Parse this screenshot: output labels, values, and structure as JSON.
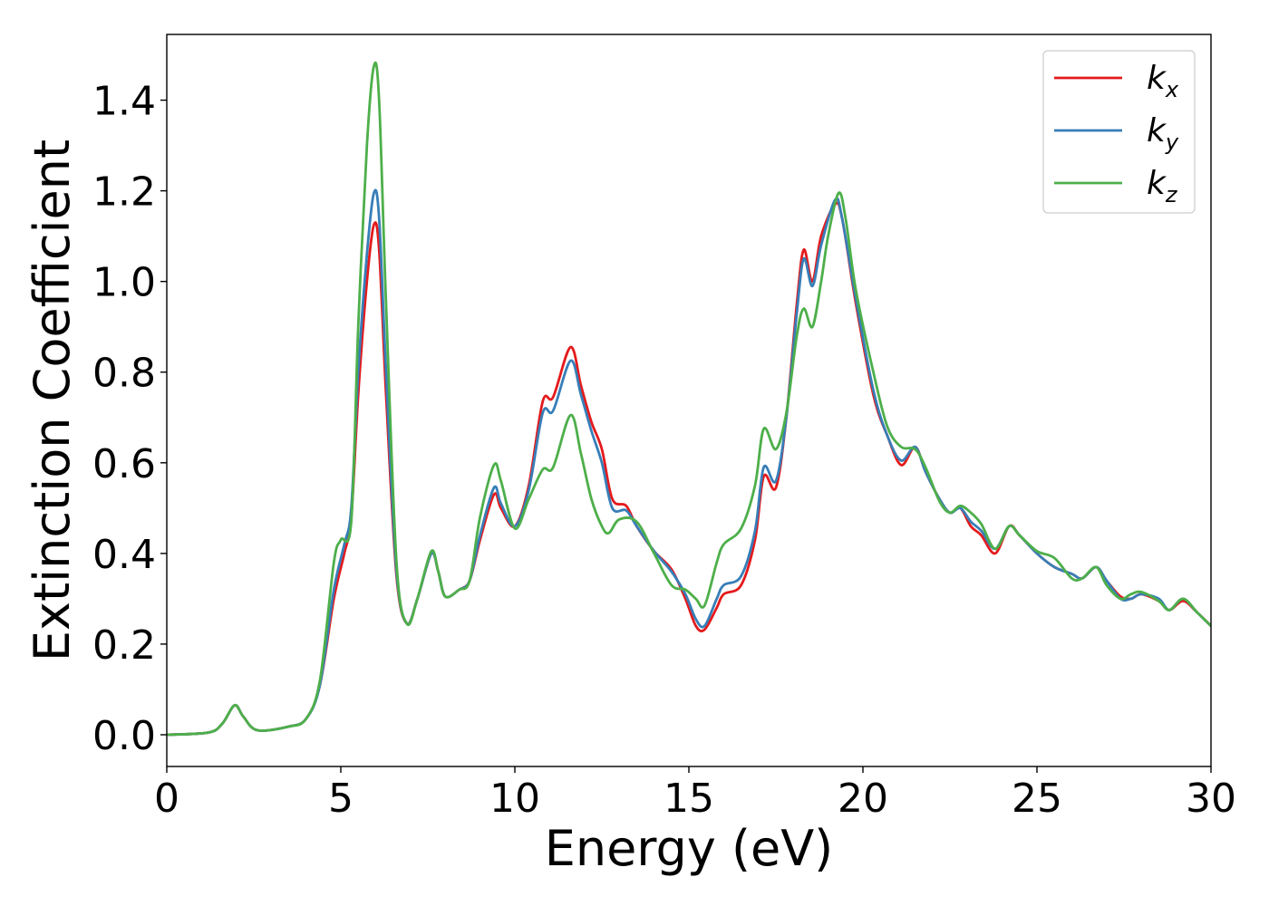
{
  "chart_data": {
    "type": "line",
    "xlabel": "Energy (eV)",
    "ylabel": "Extinction Coefficient",
    "xlim": [
      0,
      30
    ],
    "ylim": [
      -0.07,
      1.545
    ],
    "xticks": [
      0,
      5,
      10,
      15,
      20,
      25,
      30
    ],
    "xtick_labels": [
      "0",
      "5",
      "10",
      "15",
      "20",
      "25",
      "30"
    ],
    "yticks": [
      0.0,
      0.2,
      0.4,
      0.6,
      0.8,
      1.0,
      1.2,
      1.4
    ],
    "ytick_labels": [
      "0.0",
      "0.2",
      "0.4",
      "0.6",
      "0.8",
      "1.0",
      "1.2",
      "1.4"
    ],
    "grid": false,
    "legend_position": "top-right",
    "series": [
      {
        "name": "k_x",
        "label_base": "k",
        "label_sub": "x",
        "color": "#e41a1c",
        "points": [
          [
            0,
            0.0
          ],
          [
            1.2,
            0.005
          ],
          [
            1.6,
            0.025
          ],
          [
            1.95,
            0.065
          ],
          [
            2.2,
            0.04
          ],
          [
            2.6,
            0.01
          ],
          [
            3.5,
            0.018
          ],
          [
            4.0,
            0.035
          ],
          [
            4.4,
            0.11
          ],
          [
            4.8,
            0.3
          ],
          [
            5.1,
            0.4
          ],
          [
            5.3,
            0.48
          ],
          [
            5.5,
            0.75
          ],
          [
            5.75,
            1.0
          ],
          [
            5.95,
            1.125
          ],
          [
            6.1,
            1.07
          ],
          [
            6.3,
            0.75
          ],
          [
            6.6,
            0.35
          ],
          [
            6.9,
            0.245
          ],
          [
            7.2,
            0.3
          ],
          [
            7.6,
            0.4
          ],
          [
            7.8,
            0.36
          ],
          [
            8.0,
            0.305
          ],
          [
            8.4,
            0.32
          ],
          [
            8.7,
            0.34
          ],
          [
            9.0,
            0.43
          ],
          [
            9.4,
            0.53
          ],
          [
            9.6,
            0.5
          ],
          [
            10.0,
            0.46
          ],
          [
            10.4,
            0.55
          ],
          [
            10.8,
            0.735
          ],
          [
            11.1,
            0.745
          ],
          [
            11.6,
            0.855
          ],
          [
            11.9,
            0.77
          ],
          [
            12.2,
            0.69
          ],
          [
            12.5,
            0.63
          ],
          [
            12.8,
            0.52
          ],
          [
            13.2,
            0.505
          ],
          [
            13.5,
            0.46
          ],
          [
            14.0,
            0.405
          ],
          [
            14.5,
            0.365
          ],
          [
            14.9,
            0.3
          ],
          [
            15.2,
            0.24
          ],
          [
            15.45,
            0.232
          ],
          [
            15.8,
            0.28
          ],
          [
            16.0,
            0.31
          ],
          [
            16.5,
            0.33
          ],
          [
            16.9,
            0.43
          ],
          [
            17.15,
            0.57
          ],
          [
            17.5,
            0.545
          ],
          [
            17.8,
            0.7
          ],
          [
            18.1,
            0.95
          ],
          [
            18.3,
            1.07
          ],
          [
            18.55,
            1.0
          ],
          [
            18.8,
            1.1
          ],
          [
            19.2,
            1.17
          ],
          [
            19.4,
            1.14
          ],
          [
            19.8,
            0.95
          ],
          [
            20.3,
            0.75
          ],
          [
            20.7,
            0.66
          ],
          [
            21.1,
            0.595
          ],
          [
            21.5,
            0.635
          ],
          [
            21.8,
            0.58
          ],
          [
            22.2,
            0.52
          ],
          [
            22.5,
            0.49
          ],
          [
            22.8,
            0.5
          ],
          [
            23.1,
            0.46
          ],
          [
            23.4,
            0.44
          ],
          [
            23.8,
            0.4
          ],
          [
            24.2,
            0.46
          ],
          [
            24.5,
            0.44
          ],
          [
            25.0,
            0.4
          ],
          [
            25.5,
            0.37
          ],
          [
            26.0,
            0.355
          ],
          [
            26.3,
            0.345
          ],
          [
            26.7,
            0.37
          ],
          [
            27.0,
            0.34
          ],
          [
            27.4,
            0.305
          ],
          [
            27.7,
            0.3
          ],
          [
            28.0,
            0.31
          ],
          [
            28.5,
            0.295
          ],
          [
            28.8,
            0.275
          ],
          [
            29.2,
            0.295
          ],
          [
            29.6,
            0.27
          ],
          [
            30.0,
            0.24
          ]
        ]
      },
      {
        "name": "k_y",
        "label_base": "k",
        "label_sub": "y",
        "color": "#377eb8",
        "points": [
          [
            0,
            0.0
          ],
          [
            1.2,
            0.005
          ],
          [
            1.6,
            0.025
          ],
          [
            1.95,
            0.065
          ],
          [
            2.2,
            0.04
          ],
          [
            2.6,
            0.01
          ],
          [
            3.5,
            0.018
          ],
          [
            4.0,
            0.035
          ],
          [
            4.4,
            0.11
          ],
          [
            4.8,
            0.32
          ],
          [
            5.1,
            0.42
          ],
          [
            5.3,
            0.5
          ],
          [
            5.5,
            0.8
          ],
          [
            5.75,
            1.06
          ],
          [
            5.95,
            1.195
          ],
          [
            6.1,
            1.14
          ],
          [
            6.3,
            0.8
          ],
          [
            6.6,
            0.36
          ],
          [
            6.9,
            0.245
          ],
          [
            7.2,
            0.3
          ],
          [
            7.6,
            0.4
          ],
          [
            7.8,
            0.36
          ],
          [
            8.0,
            0.305
          ],
          [
            8.4,
            0.32
          ],
          [
            8.7,
            0.34
          ],
          [
            9.0,
            0.44
          ],
          [
            9.4,
            0.545
          ],
          [
            9.6,
            0.51
          ],
          [
            10.0,
            0.46
          ],
          [
            10.4,
            0.54
          ],
          [
            10.8,
            0.71
          ],
          [
            11.1,
            0.715
          ],
          [
            11.6,
            0.825
          ],
          [
            11.9,
            0.75
          ],
          [
            12.2,
            0.67
          ],
          [
            12.5,
            0.6
          ],
          [
            12.8,
            0.5
          ],
          [
            13.2,
            0.495
          ],
          [
            13.5,
            0.46
          ],
          [
            14.0,
            0.405
          ],
          [
            14.5,
            0.36
          ],
          [
            14.9,
            0.31
          ],
          [
            15.2,
            0.255
          ],
          [
            15.45,
            0.24
          ],
          [
            15.8,
            0.3
          ],
          [
            16.0,
            0.33
          ],
          [
            16.5,
            0.35
          ],
          [
            16.9,
            0.45
          ],
          [
            17.15,
            0.59
          ],
          [
            17.5,
            0.56
          ],
          [
            17.8,
            0.7
          ],
          [
            18.1,
            0.93
          ],
          [
            18.3,
            1.05
          ],
          [
            18.55,
            0.99
          ],
          [
            18.8,
            1.08
          ],
          [
            19.2,
            1.18
          ],
          [
            19.4,
            1.14
          ],
          [
            19.8,
            0.96
          ],
          [
            20.3,
            0.76
          ],
          [
            20.7,
            0.66
          ],
          [
            21.1,
            0.605
          ],
          [
            21.5,
            0.635
          ],
          [
            21.8,
            0.58
          ],
          [
            22.2,
            0.52
          ],
          [
            22.5,
            0.49
          ],
          [
            22.8,
            0.5
          ],
          [
            23.1,
            0.47
          ],
          [
            23.4,
            0.45
          ],
          [
            23.8,
            0.41
          ],
          [
            24.2,
            0.46
          ],
          [
            24.5,
            0.44
          ],
          [
            25.0,
            0.4
          ],
          [
            25.5,
            0.37
          ],
          [
            26.0,
            0.355
          ],
          [
            26.3,
            0.345
          ],
          [
            26.7,
            0.37
          ],
          [
            27.0,
            0.34
          ],
          [
            27.4,
            0.3
          ],
          [
            27.7,
            0.3
          ],
          [
            28.0,
            0.31
          ],
          [
            28.5,
            0.3
          ],
          [
            28.8,
            0.275
          ],
          [
            29.2,
            0.3
          ],
          [
            29.6,
            0.27
          ],
          [
            30.0,
            0.24
          ]
        ]
      },
      {
        "name": "k_z",
        "label_base": "k",
        "label_sub": "z",
        "color": "#4daf4a",
        "points": [
          [
            0,
            0.0
          ],
          [
            1.2,
            0.005
          ],
          [
            1.6,
            0.025
          ],
          [
            1.95,
            0.065
          ],
          [
            2.2,
            0.04
          ],
          [
            2.6,
            0.01
          ],
          [
            3.5,
            0.018
          ],
          [
            4.0,
            0.035
          ],
          [
            4.4,
            0.12
          ],
          [
            4.8,
            0.38
          ],
          [
            5.0,
            0.43
          ],
          [
            5.3,
            0.47
          ],
          [
            5.5,
            0.9
          ],
          [
            5.75,
            1.3
          ],
          [
            5.95,
            1.475
          ],
          [
            6.1,
            1.4
          ],
          [
            6.3,
            0.95
          ],
          [
            6.6,
            0.38
          ],
          [
            6.9,
            0.245
          ],
          [
            7.2,
            0.3
          ],
          [
            7.6,
            0.405
          ],
          [
            7.8,
            0.36
          ],
          [
            8.0,
            0.305
          ],
          [
            8.4,
            0.32
          ],
          [
            8.7,
            0.34
          ],
          [
            9.0,
            0.48
          ],
          [
            9.4,
            0.595
          ],
          [
            9.6,
            0.56
          ],
          [
            10.0,
            0.455
          ],
          [
            10.4,
            0.52
          ],
          [
            10.8,
            0.585
          ],
          [
            11.1,
            0.59
          ],
          [
            11.6,
            0.705
          ],
          [
            11.9,
            0.62
          ],
          [
            12.2,
            0.52
          ],
          [
            12.5,
            0.46
          ],
          [
            12.7,
            0.445
          ],
          [
            13.0,
            0.475
          ],
          [
            13.5,
            0.47
          ],
          [
            14.0,
            0.4
          ],
          [
            14.5,
            0.33
          ],
          [
            14.9,
            0.32
          ],
          [
            15.2,
            0.3
          ],
          [
            15.45,
            0.285
          ],
          [
            15.8,
            0.38
          ],
          [
            16.0,
            0.42
          ],
          [
            16.5,
            0.455
          ],
          [
            16.9,
            0.55
          ],
          [
            17.15,
            0.675
          ],
          [
            17.5,
            0.63
          ],
          [
            17.8,
            0.71
          ],
          [
            18.1,
            0.88
          ],
          [
            18.3,
            0.94
          ],
          [
            18.55,
            0.9
          ],
          [
            18.8,
            1.0
          ],
          [
            19.0,
            1.1
          ],
          [
            19.3,
            1.195
          ],
          [
            19.5,
            1.14
          ],
          [
            19.8,
            0.98
          ],
          [
            20.3,
            0.8
          ],
          [
            20.7,
            0.68
          ],
          [
            21.1,
            0.635
          ],
          [
            21.5,
            0.63
          ],
          [
            21.8,
            0.59
          ],
          [
            22.2,
            0.515
          ],
          [
            22.5,
            0.49
          ],
          [
            22.8,
            0.505
          ],
          [
            23.1,
            0.49
          ],
          [
            23.4,
            0.465
          ],
          [
            23.8,
            0.41
          ],
          [
            24.2,
            0.46
          ],
          [
            24.5,
            0.44
          ],
          [
            25.0,
            0.405
          ],
          [
            25.5,
            0.39
          ],
          [
            26.0,
            0.345
          ],
          [
            26.3,
            0.345
          ],
          [
            26.7,
            0.37
          ],
          [
            27.0,
            0.33
          ],
          [
            27.4,
            0.3
          ],
          [
            27.7,
            0.31
          ],
          [
            28.0,
            0.315
          ],
          [
            28.5,
            0.295
          ],
          [
            28.8,
            0.275
          ],
          [
            29.2,
            0.3
          ],
          [
            29.6,
            0.27
          ],
          [
            30.0,
            0.24
          ]
        ]
      }
    ]
  }
}
